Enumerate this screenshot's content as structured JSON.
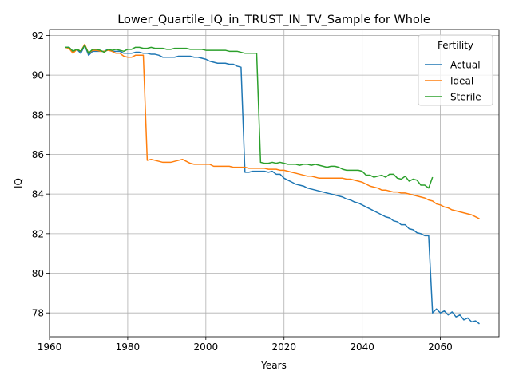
{
  "chart_data": {
    "type": "line",
    "title": "Lower_Quartile_IQ_in_TRUST_IN_TV_Sample for Whole",
    "xlabel": "Years",
    "ylabel": "IQ",
    "xlim": [
      1960,
      2075
    ],
    "ylim": [
      76.8,
      92.3
    ],
    "xticks": [
      1960,
      1980,
      2000,
      2020,
      2040,
      2060
    ],
    "yticks": [
      78,
      80,
      82,
      84,
      86,
      88,
      90,
      92
    ],
    "grid": true,
    "legend": {
      "title": "Fertility",
      "placement": "top-right"
    },
    "series": [
      {
        "name": "Actual",
        "color": "#1f77b4",
        "points": [
          [
            1964,
            91.4
          ],
          [
            1965,
            91.4
          ],
          [
            1966,
            91.2
          ],
          [
            1967,
            91.3
          ],
          [
            1968,
            91.1
          ],
          [
            1969,
            91.5
          ],
          [
            1970,
            91.0
          ],
          [
            1971,
            91.2
          ],
          [
            1972,
            91.2
          ],
          [
            1973,
            91.2
          ],
          [
            1974,
            91.2
          ],
          [
            1975,
            91.3
          ],
          [
            1976,
            91.2
          ],
          [
            1977,
            91.2
          ],
          [
            1978,
            91.2
          ],
          [
            1979,
            91.1
          ],
          [
            1980,
            91.1
          ],
          [
            1981,
            91.1
          ],
          [
            1982,
            91.15
          ],
          [
            1983,
            91.15
          ],
          [
            1984,
            91.1
          ],
          [
            1985,
            91.1
          ],
          [
            1986,
            91.05
          ],
          [
            1987,
            91.05
          ],
          [
            1988,
            91.0
          ],
          [
            1989,
            90.9
          ],
          [
            1990,
            90.9
          ],
          [
            1991,
            90.9
          ],
          [
            1992,
            90.9
          ],
          [
            1993,
            90.95
          ],
          [
            1994,
            90.95
          ],
          [
            1995,
            90.95
          ],
          [
            1996,
            90.95
          ],
          [
            1997,
            90.9
          ],
          [
            1998,
            90.9
          ],
          [
            1999,
            90.85
          ],
          [
            2000,
            90.8
          ],
          [
            2001,
            90.7
          ],
          [
            2002,
            90.65
          ],
          [
            2003,
            90.6
          ],
          [
            2004,
            90.6
          ],
          [
            2005,
            90.6
          ],
          [
            2006,
            90.55
          ],
          [
            2007,
            90.55
          ],
          [
            2008,
            90.45
          ],
          [
            2009,
            90.4
          ],
          [
            2010,
            85.1
          ],
          [
            2011,
            85.1
          ],
          [
            2012,
            85.15
          ],
          [
            2013,
            85.15
          ],
          [
            2014,
            85.15
          ],
          [
            2015,
            85.15
          ],
          [
            2016,
            85.1
          ],
          [
            2017,
            85.15
          ],
          [
            2018,
            85.0
          ],
          [
            2019,
            85.0
          ],
          [
            2020,
            84.8
          ],
          [
            2021,
            84.7
          ],
          [
            2022,
            84.6
          ],
          [
            2023,
            84.5
          ],
          [
            2024,
            84.45
          ],
          [
            2025,
            84.4
          ],
          [
            2026,
            84.3
          ],
          [
            2027,
            84.25
          ],
          [
            2028,
            84.2
          ],
          [
            2029,
            84.15
          ],
          [
            2030,
            84.1
          ],
          [
            2031,
            84.05
          ],
          [
            2032,
            84.0
          ],
          [
            2033,
            83.95
          ],
          [
            2034,
            83.9
          ],
          [
            2035,
            83.85
          ],
          [
            2036,
            83.75
          ],
          [
            2037,
            83.7
          ],
          [
            2038,
            83.6
          ],
          [
            2039,
            83.55
          ],
          [
            2040,
            83.45
          ],
          [
            2041,
            83.35
          ],
          [
            2042,
            83.25
          ],
          [
            2043,
            83.15
          ],
          [
            2044,
            83.05
          ],
          [
            2045,
            82.95
          ],
          [
            2046,
            82.85
          ],
          [
            2047,
            82.8
          ],
          [
            2048,
            82.65
          ],
          [
            2049,
            82.6
          ],
          [
            2050,
            82.45
          ],
          [
            2051,
            82.45
          ],
          [
            2052,
            82.25
          ],
          [
            2053,
            82.2
          ],
          [
            2054,
            82.05
          ],
          [
            2055,
            82.0
          ],
          [
            2056,
            81.9
          ],
          [
            2057,
            81.9
          ],
          [
            2058,
            78.0
          ],
          [
            2059,
            78.2
          ],
          [
            2060,
            78.0
          ],
          [
            2061,
            78.1
          ],
          [
            2062,
            77.9
          ],
          [
            2063,
            78.05
          ],
          [
            2064,
            77.8
          ],
          [
            2065,
            77.9
          ],
          [
            2066,
            77.65
          ],
          [
            2067,
            77.75
          ],
          [
            2068,
            77.55
          ],
          [
            2069,
            77.6
          ],
          [
            2070,
            77.45
          ]
        ]
      },
      {
        "name": "Ideal",
        "color": "#ff7f0e",
        "points": [
          [
            1964,
            91.4
          ],
          [
            1965,
            91.35
          ],
          [
            1966,
            91.1
          ],
          [
            1967,
            91.3
          ],
          [
            1968,
            91.2
          ],
          [
            1969,
            91.55
          ],
          [
            1970,
            91.1
          ],
          [
            1971,
            91.25
          ],
          [
            1972,
            91.25
          ],
          [
            1973,
            91.2
          ],
          [
            1974,
            91.2
          ],
          [
            1975,
            91.25
          ],
          [
            1976,
            91.2
          ],
          [
            1977,
            91.1
          ],
          [
            1978,
            91.1
          ],
          [
            1979,
            90.95
          ],
          [
            1980,
            90.9
          ],
          [
            1981,
            90.9
          ],
          [
            1982,
            91.0
          ],
          [
            1983,
            91.0
          ],
          [
            1984,
            91.0
          ],
          [
            1985,
            85.7
          ],
          [
            1986,
            85.75
          ],
          [
            1987,
            85.7
          ],
          [
            1988,
            85.65
          ],
          [
            1989,
            85.6
          ],
          [
            1990,
            85.6
          ],
          [
            1991,
            85.6
          ],
          [
            1992,
            85.65
          ],
          [
            1993,
            85.7
          ],
          [
            1994,
            85.75
          ],
          [
            1995,
            85.65
          ],
          [
            1996,
            85.55
          ],
          [
            1997,
            85.5
          ],
          [
            1998,
            85.5
          ],
          [
            1999,
            85.5
          ],
          [
            2000,
            85.5
          ],
          [
            2001,
            85.5
          ],
          [
            2002,
            85.4
          ],
          [
            2003,
            85.4
          ],
          [
            2004,
            85.4
          ],
          [
            2005,
            85.4
          ],
          [
            2006,
            85.4
          ],
          [
            2007,
            85.35
          ],
          [
            2008,
            85.35
          ],
          [
            2009,
            85.35
          ],
          [
            2010,
            85.35
          ],
          [
            2011,
            85.3
          ],
          [
            2012,
            85.3
          ],
          [
            2013,
            85.3
          ],
          [
            2014,
            85.3
          ],
          [
            2015,
            85.3
          ],
          [
            2016,
            85.25
          ],
          [
            2017,
            85.25
          ],
          [
            2018,
            85.25
          ],
          [
            2019,
            85.2
          ],
          [
            2020,
            85.2
          ],
          [
            2021,
            85.15
          ],
          [
            2022,
            85.1
          ],
          [
            2023,
            85.05
          ],
          [
            2024,
            85.0
          ],
          [
            2025,
            84.95
          ],
          [
            2026,
            84.9
          ],
          [
            2027,
            84.9
          ],
          [
            2028,
            84.85
          ],
          [
            2029,
            84.8
          ],
          [
            2030,
            84.8
          ],
          [
            2031,
            84.8
          ],
          [
            2032,
            84.8
          ],
          [
            2033,
            84.8
          ],
          [
            2034,
            84.8
          ],
          [
            2035,
            84.8
          ],
          [
            2036,
            84.75
          ],
          [
            2037,
            84.75
          ],
          [
            2038,
            84.7
          ],
          [
            2039,
            84.65
          ],
          [
            2040,
            84.6
          ],
          [
            2041,
            84.5
          ],
          [
            2042,
            84.4
          ],
          [
            2043,
            84.35
          ],
          [
            2044,
            84.3
          ],
          [
            2045,
            84.2
          ],
          [
            2046,
            84.2
          ],
          [
            2047,
            84.15
          ],
          [
            2048,
            84.1
          ],
          [
            2049,
            84.1
          ],
          [
            2050,
            84.05
          ],
          [
            2051,
            84.05
          ],
          [
            2052,
            84.0
          ],
          [
            2053,
            83.95
          ],
          [
            2054,
            83.9
          ],
          [
            2055,
            83.85
          ],
          [
            2056,
            83.8
          ],
          [
            2057,
            83.7
          ],
          [
            2058,
            83.65
          ],
          [
            2059,
            83.5
          ],
          [
            2060,
            83.45
          ],
          [
            2061,
            83.35
          ],
          [
            2062,
            83.3
          ],
          [
            2063,
            83.2
          ],
          [
            2064,
            83.15
          ],
          [
            2065,
            83.1
          ],
          [
            2066,
            83.05
          ],
          [
            2067,
            83.0
          ],
          [
            2068,
            82.95
          ],
          [
            2069,
            82.85
          ],
          [
            2070,
            82.75
          ]
        ]
      },
      {
        "name": "Sterile",
        "color": "#2ca02c",
        "points": [
          [
            1964,
            91.4
          ],
          [
            1965,
            91.4
          ],
          [
            1966,
            91.2
          ],
          [
            1967,
            91.3
          ],
          [
            1968,
            91.2
          ],
          [
            1969,
            91.5
          ],
          [
            1970,
            91.1
          ],
          [
            1971,
            91.3
          ],
          [
            1972,
            91.3
          ],
          [
            1973,
            91.25
          ],
          [
            1974,
            91.15
          ],
          [
            1975,
            91.3
          ],
          [
            1976,
            91.25
          ],
          [
            1977,
            91.3
          ],
          [
            1978,
            91.25
          ],
          [
            1979,
            91.2
          ],
          [
            1980,
            91.3
          ],
          [
            1981,
            91.3
          ],
          [
            1982,
            91.4
          ],
          [
            1983,
            91.4
          ],
          [
            1984,
            91.35
          ],
          [
            1985,
            91.35
          ],
          [
            1986,
            91.4
          ],
          [
            1987,
            91.35
          ],
          [
            1988,
            91.35
          ],
          [
            1989,
            91.35
          ],
          [
            1990,
            91.3
          ],
          [
            1991,
            91.3
          ],
          [
            1992,
            91.35
          ],
          [
            1993,
            91.35
          ],
          [
            1994,
            91.35
          ],
          [
            1995,
            91.35
          ],
          [
            1996,
            91.3
          ],
          [
            1997,
            91.3
          ],
          [
            1998,
            91.3
          ],
          [
            1999,
            91.3
          ],
          [
            2000,
            91.25
          ],
          [
            2001,
            91.25
          ],
          [
            2002,
            91.25
          ],
          [
            2003,
            91.25
          ],
          [
            2004,
            91.25
          ],
          [
            2005,
            91.25
          ],
          [
            2006,
            91.2
          ],
          [
            2007,
            91.2
          ],
          [
            2008,
            91.2
          ],
          [
            2009,
            91.15
          ],
          [
            2010,
            91.1
          ],
          [
            2011,
            91.1
          ],
          [
            2012,
            91.1
          ],
          [
            2013,
            91.1
          ],
          [
            2014,
            85.6
          ],
          [
            2015,
            85.55
          ],
          [
            2016,
            85.55
          ],
          [
            2017,
            85.6
          ],
          [
            2018,
            85.55
          ],
          [
            2019,
            85.6
          ],
          [
            2020,
            85.55
          ],
          [
            2021,
            85.5
          ],
          [
            2022,
            85.5
          ],
          [
            2023,
            85.5
          ],
          [
            2024,
            85.45
          ],
          [
            2025,
            85.5
          ],
          [
            2026,
            85.5
          ],
          [
            2027,
            85.45
          ],
          [
            2028,
            85.5
          ],
          [
            2029,
            85.45
          ],
          [
            2030,
            85.4
          ],
          [
            2031,
            85.35
          ],
          [
            2032,
            85.4
          ],
          [
            2033,
            85.4
          ],
          [
            2034,
            85.35
          ],
          [
            2035,
            85.25
          ],
          [
            2036,
            85.2
          ],
          [
            2037,
            85.2
          ],
          [
            2038,
            85.2
          ],
          [
            2039,
            85.2
          ],
          [
            2040,
            85.15
          ],
          [
            2041,
            84.95
          ],
          [
            2042,
            84.95
          ],
          [
            2043,
            84.85
          ],
          [
            2044,
            84.9
          ],
          [
            2045,
            84.95
          ],
          [
            2046,
            84.85
          ],
          [
            2047,
            85.0
          ],
          [
            2048,
            85.0
          ],
          [
            2049,
            84.8
          ],
          [
            2050,
            84.75
          ],
          [
            2051,
            84.9
          ],
          [
            2052,
            84.65
          ],
          [
            2053,
            84.75
          ],
          [
            2054,
            84.7
          ],
          [
            2055,
            84.45
          ],
          [
            2056,
            84.45
          ],
          [
            2057,
            84.3
          ],
          [
            2058,
            84.85
          ]
        ]
      }
    ]
  }
}
